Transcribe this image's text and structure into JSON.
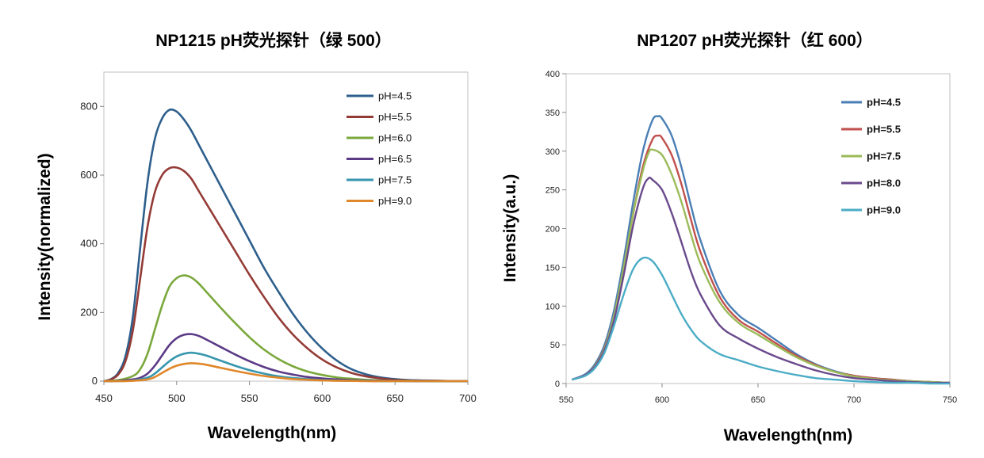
{
  "chart_data": [
    {
      "type": "line",
      "title": "NP1215 pH荧光探针（绿 500）",
      "xlabel": "Wavelength(nm)",
      "ylabel": "Intensity(normalized)",
      "xlim": [
        450,
        700
      ],
      "ylim": [
        0,
        900
      ],
      "xticks": [
        450,
        500,
        550,
        600,
        650,
        700
      ],
      "yticks": [
        0,
        200,
        400,
        600,
        800
      ],
      "grid": false,
      "legend_position": "top-right",
      "series": [
        {
          "name": "pH=4.5",
          "color": "#2e5f8c",
          "x": [
            450,
            455,
            460,
            465,
            470,
            475,
            480,
            485,
            490,
            495,
            500,
            505,
            510,
            515,
            520,
            530,
            540,
            550,
            560,
            570,
            580,
            590,
            600,
            610,
            620,
            630,
            640,
            650,
            660,
            670,
            680,
            690,
            700
          ],
          "y": [
            0,
            6,
            25,
            75,
            190,
            390,
            580,
            705,
            765,
            790,
            785,
            762,
            730,
            690,
            650,
            570,
            490,
            410,
            330,
            260,
            195,
            140,
            95,
            60,
            35,
            20,
            11,
            6,
            3,
            2,
            1,
            0,
            0
          ]
        },
        {
          "name": "pH=5.5",
          "color": "#943b36",
          "x": [
            450,
            455,
            460,
            465,
            470,
            475,
            480,
            485,
            490,
            495,
            500,
            505,
            510,
            515,
            520,
            530,
            540,
            550,
            560,
            570,
            580,
            590,
            600,
            610,
            620,
            630,
            640,
            650,
            660,
            670,
            680,
            690,
            700
          ],
          "y": [
            0,
            5,
            20,
            60,
            150,
            300,
            450,
            550,
            600,
            620,
            622,
            612,
            590,
            555,
            520,
            450,
            380,
            310,
            245,
            185,
            135,
            95,
            63,
            40,
            24,
            14,
            8,
            4,
            2,
            1,
            1,
            0,
            0
          ]
        },
        {
          "name": "pH=6.0",
          "color": "#7aa83b",
          "x": [
            450,
            460,
            470,
            475,
            480,
            485,
            490,
            495,
            500,
            505,
            510,
            515,
            520,
            530,
            540,
            550,
            560,
            570,
            580,
            590,
            600,
            610,
            620,
            630,
            640,
            650,
            660,
            670,
            680,
            690,
            700
          ],
          "y": [
            0,
            3,
            15,
            35,
            80,
            150,
            220,
            275,
            300,
            308,
            302,
            285,
            262,
            215,
            170,
            128,
            92,
            64,
            43,
            28,
            18,
            11,
            7,
            4,
            2,
            1,
            1,
            0,
            0,
            0,
            0
          ]
        },
        {
          "name": "pH=6.5",
          "color": "#5b3a86",
          "x": [
            450,
            460,
            470,
            475,
            480,
            485,
            490,
            495,
            500,
            505,
            510,
            515,
            520,
            530,
            540,
            550,
            560,
            570,
            580,
            590,
            600,
            610,
            620,
            630,
            640,
            650,
            660,
            670,
            680,
            690,
            700
          ],
          "y": [
            0,
            1,
            5,
            10,
            22,
            45,
            75,
            105,
            125,
            135,
            137,
            132,
            122,
            100,
            78,
            58,
            41,
            28,
            19,
            12,
            8,
            5,
            3,
            2,
            1,
            1,
            0,
            0,
            0,
            0,
            0
          ]
        },
        {
          "name": "pH=7.5",
          "color": "#3796ad",
          "x": [
            450,
            460,
            470,
            480,
            485,
            490,
            495,
            500,
            505,
            510,
            515,
            520,
            530,
            540,
            550,
            560,
            570,
            580,
            590,
            600,
            610,
            620,
            630,
            640,
            650,
            660,
            670,
            680,
            690,
            700
          ],
          "y": [
            0,
            0,
            2,
            10,
            22,
            40,
            58,
            72,
            80,
            83,
            80,
            75,
            60,
            45,
            32,
            22,
            14,
            9,
            6,
            3,
            2,
            1,
            1,
            0,
            0,
            0,
            0,
            0,
            0,
            0
          ]
        },
        {
          "name": "pH=9.0",
          "color": "#e0872a",
          "x": [
            450,
            460,
            470,
            480,
            485,
            490,
            495,
            500,
            505,
            510,
            515,
            520,
            530,
            540,
            550,
            560,
            570,
            580,
            590,
            600,
            610,
            620,
            630,
            640,
            650,
            660,
            670,
            680,
            690,
            700
          ],
          "y": [
            0,
            0,
            1,
            5,
            12,
            24,
            36,
            45,
            50,
            52,
            51,
            48,
            39,
            30,
            22,
            15,
            10,
            6,
            4,
            2,
            1,
            1,
            0,
            0,
            0,
            0,
            0,
            0,
            0,
            0
          ]
        }
      ]
    },
    {
      "type": "line",
      "title": "NP1207 pH荧光探针（红 600）",
      "xlabel": "Wavelength(nm)",
      "ylabel": "Intensity(a.u.)",
      "xlim": [
        550,
        750
      ],
      "ylim": [
        0,
        400
      ],
      "xticks": [
        550,
        600,
        650,
        700,
        750
      ],
      "yticks": [
        0,
        50,
        100,
        150,
        200,
        250,
        300,
        350,
        400
      ],
      "grid": false,
      "legend_position": "top-right",
      "series": [
        {
          "name": "pH=4.5",
          "color": "#4a7fb5",
          "x": [
            553,
            560,
            565,
            570,
            575,
            580,
            585,
            590,
            595,
            598,
            600,
            605,
            610,
            615,
            620,
            630,
            640,
            650,
            660,
            670,
            680,
            690,
            700,
            710,
            720,
            730,
            740,
            750
          ],
          "y": [
            5,
            12,
            25,
            50,
            95,
            160,
            235,
            300,
            340,
            345,
            342,
            320,
            280,
            230,
            185,
            120,
            88,
            72,
            55,
            38,
            25,
            16,
            10,
            7,
            5,
            3,
            2,
            1
          ]
        },
        {
          "name": "pH=5.5",
          "color": "#c0504d",
          "x": [
            553,
            560,
            565,
            570,
            575,
            580,
            585,
            590,
            595,
            598,
            600,
            605,
            610,
            615,
            620,
            630,
            640,
            650,
            660,
            670,
            680,
            690,
            700,
            710,
            720,
            730,
            740,
            750
          ],
          "y": [
            5,
            11,
            23,
            46,
            88,
            150,
            220,
            280,
            315,
            320,
            317,
            295,
            258,
            212,
            170,
            112,
            82,
            67,
            51,
            36,
            24,
            15,
            10,
            7,
            5,
            3,
            2,
            1
          ]
        },
        {
          "name": "pH=7.5",
          "color": "#9bbb59",
          "x": [
            553,
            560,
            565,
            570,
            575,
            580,
            585,
            590,
            593,
            595,
            600,
            605,
            610,
            615,
            620,
            630,
            640,
            650,
            660,
            670,
            680,
            690,
            700,
            710,
            720,
            730,
            740,
            750
          ],
          "y": [
            5,
            11,
            23,
            45,
            88,
            150,
            220,
            275,
            298,
            302,
            295,
            270,
            235,
            193,
            155,
            105,
            78,
            63,
            48,
            34,
            23,
            15,
            9,
            6,
            4,
            3,
            2,
            1
          ]
        },
        {
          "name": "pH=8.0",
          "color": "#6a4a8c",
          "x": [
            553,
            560,
            565,
            570,
            575,
            580,
            585,
            590,
            593,
            595,
            600,
            605,
            610,
            615,
            620,
            630,
            640,
            650,
            660,
            670,
            680,
            690,
            700,
            710,
            720,
            730,
            740,
            750
          ],
          "y": [
            5,
            11,
            22,
            43,
            82,
            140,
            205,
            252,
            265,
            263,
            250,
            220,
            183,
            145,
            115,
            75,
            58,
            45,
            34,
            25,
            17,
            11,
            7,
            5,
            3,
            2,
            1,
            1
          ]
        },
        {
          "name": "pH=9.0",
          "color": "#4bacc6",
          "x": [
            553,
            560,
            565,
            570,
            575,
            580,
            585,
            590,
            595,
            600,
            605,
            610,
            615,
            620,
            630,
            640,
            650,
            660,
            670,
            680,
            690,
            700,
            710,
            720,
            730,
            740,
            750
          ],
          "y": [
            5,
            10,
            20,
            40,
            75,
            115,
            148,
            162,
            158,
            140,
            115,
            90,
            70,
            55,
            38,
            30,
            22,
            16,
            11,
            7,
            5,
            3,
            2,
            1,
            1,
            0,
            0
          ]
        }
      ]
    }
  ]
}
